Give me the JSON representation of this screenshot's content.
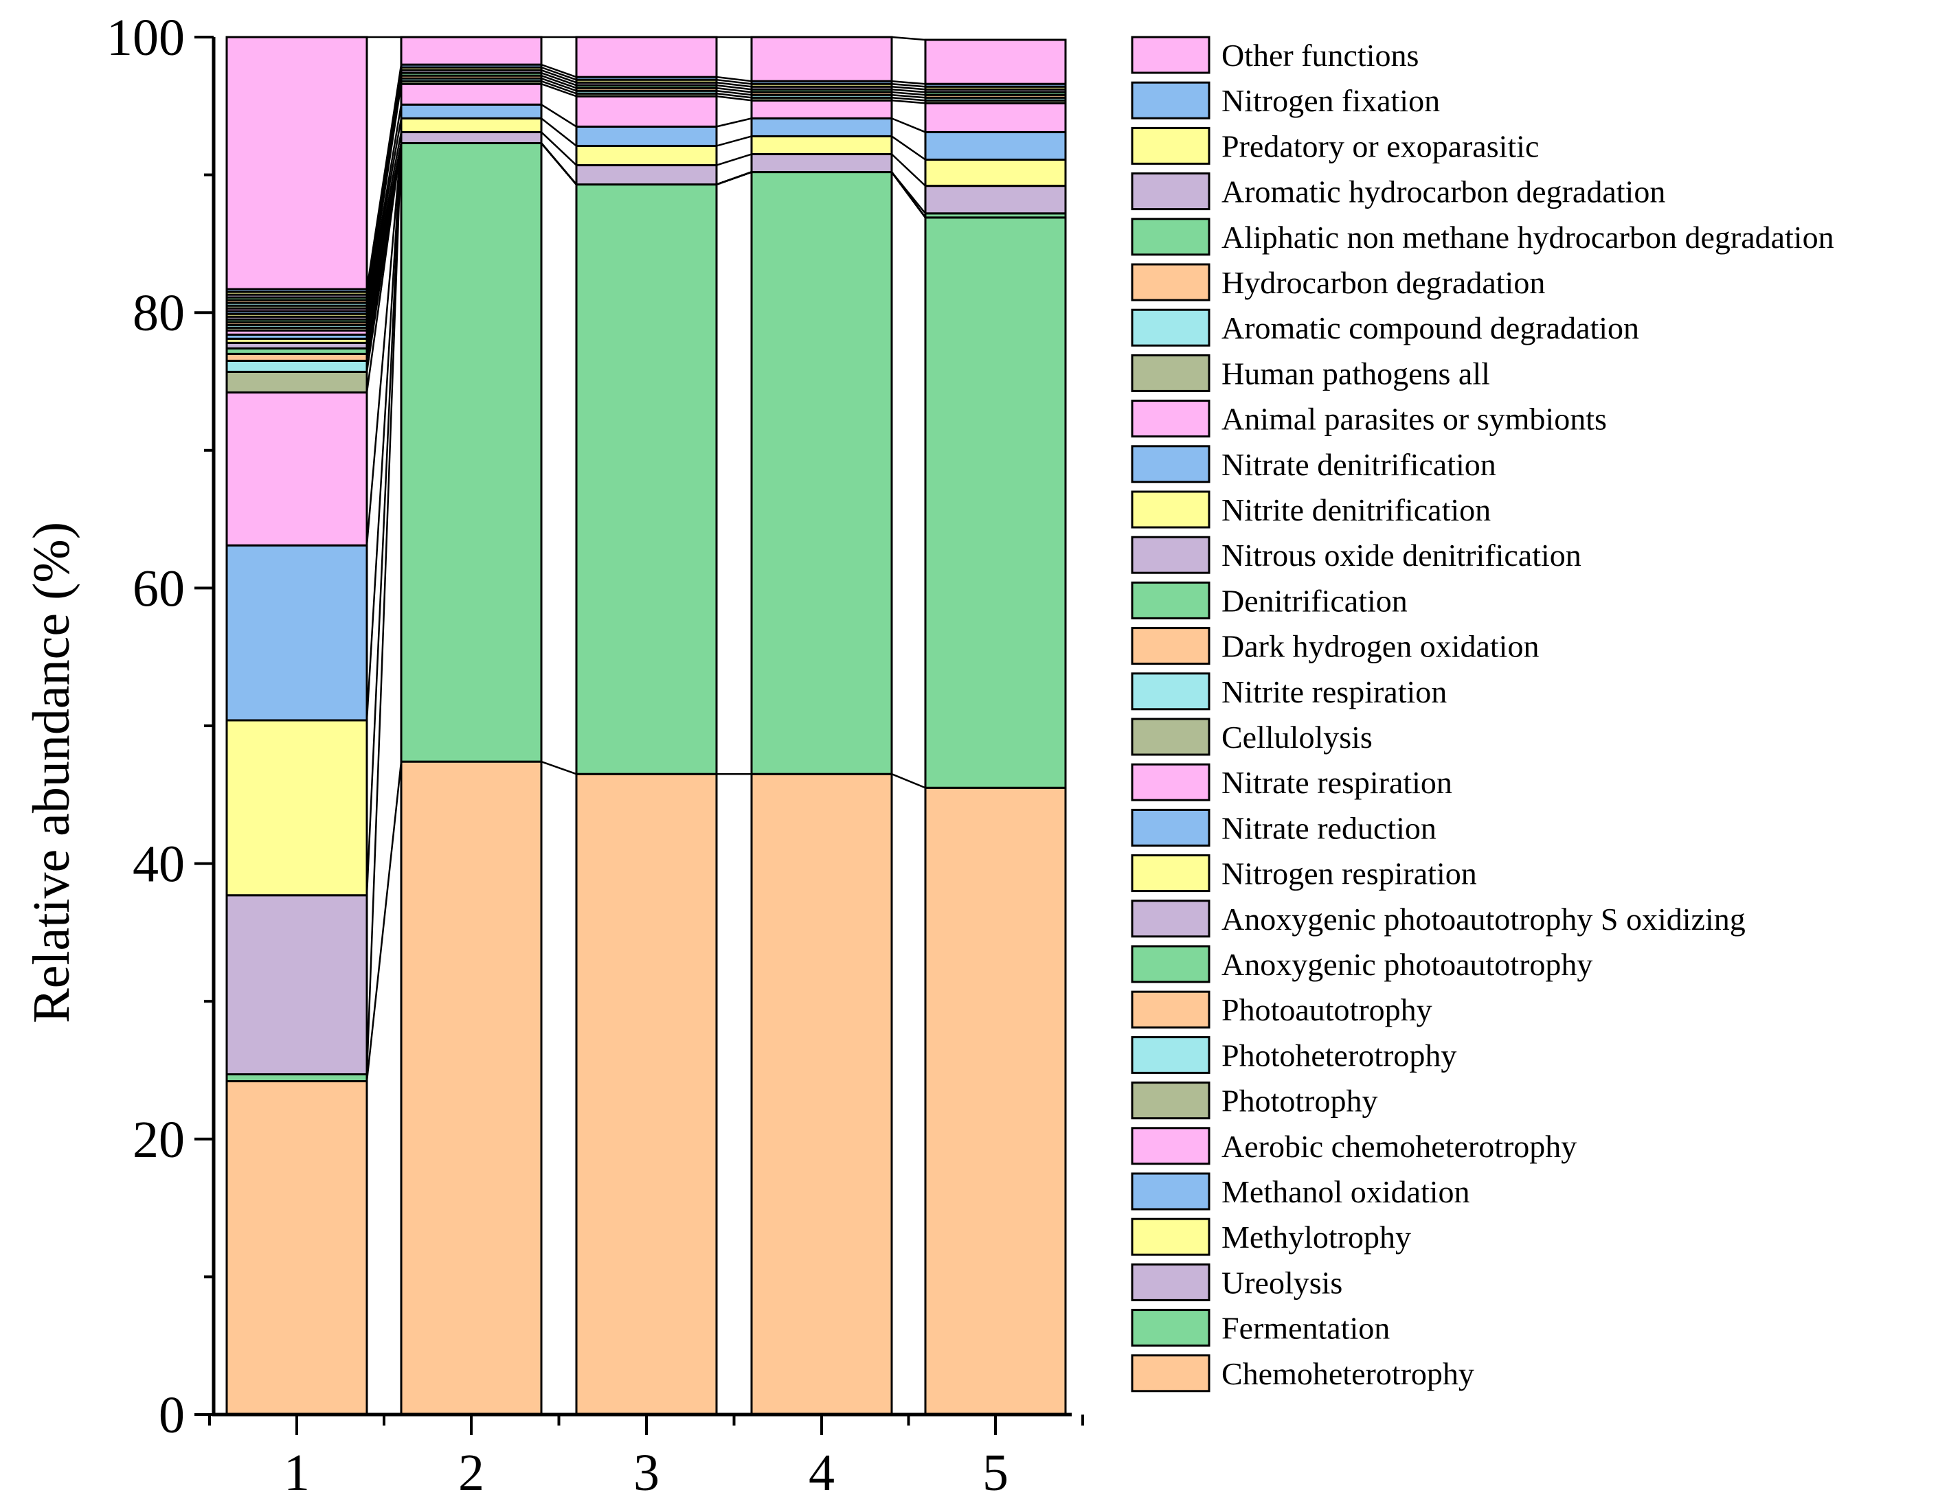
{
  "chart_data": {
    "type": "bar",
    "stacked": true,
    "connector_lines": true,
    "categories": [
      "1",
      "2",
      "3",
      "4",
      "5"
    ],
    "ylabel": "Relative abundance (%)",
    "xlabel": "",
    "ylim": [
      0,
      100
    ],
    "yticks": [
      "0",
      "20",
      "40",
      "60",
      "80",
      "100"
    ],
    "legend_position": "right",
    "series": [
      {
        "name": "Chemoheterotrophy",
        "color": "#FFC896",
        "values": [
          24.2,
          47.4,
          46.5,
          46.5,
          45.5
        ]
      },
      {
        "name": "Fermentation",
        "color": "#7FD89A",
        "values": [
          0.5,
          44.9,
          42.8,
          43.7,
          41.4
        ]
      },
      {
        "name": "Ureolysis",
        "color": "#C8B4D8",
        "values": [
          13.0,
          0.0,
          0.0,
          0.0,
          0.0
        ]
      },
      {
        "name": "Methylotrophy",
        "color": "#FFFF96",
        "values": [
          12.7,
          0.0,
          0.0,
          0.0,
          0.0
        ]
      },
      {
        "name": "Methanol oxidation",
        "color": "#8ABCF0",
        "values": [
          12.7,
          0.0,
          0.0,
          0.0,
          0.0
        ]
      },
      {
        "name": "Aerobic chemoheterotrophy",
        "color": "#FFB4F4",
        "values": [
          11.1,
          0.0,
          0.0,
          0.0,
          0.0
        ]
      },
      {
        "name": "Phototrophy",
        "color": "#B0BC94",
        "values": [
          1.5,
          0.0,
          0.0,
          0.0,
          0.0
        ]
      },
      {
        "name": "Photoheterotrophy",
        "color": "#A0E8EC",
        "values": [
          0.8,
          0.0,
          0.0,
          0.0,
          0.0
        ]
      },
      {
        "name": "Photoautotrophy",
        "color": "#FFC896",
        "values": [
          0.5,
          0.0,
          0.0,
          0.0,
          0.0
        ]
      },
      {
        "name": "Anoxygenic photoautotrophy",
        "color": "#7FD89A",
        "values": [
          0.4,
          0.0,
          0.0,
          0.0,
          0.0
        ]
      },
      {
        "name": "Anoxygenic photoautotrophy S oxidizing",
        "color": "#C8B4D8",
        "values": [
          0.4,
          0.0,
          0.0,
          0.0,
          0.0
        ]
      },
      {
        "name": "Nitrogen respiration",
        "color": "#FFFF96",
        "values": [
          0.3,
          0.0,
          0.0,
          0.0,
          0.0
        ]
      },
      {
        "name": "Nitrate reduction",
        "color": "#8ABCF0",
        "values": [
          0.3,
          0.0,
          0.0,
          0.0,
          0.0
        ]
      },
      {
        "name": "Nitrate respiration",
        "color": "#FFB4F4",
        "values": [
          0.3,
          0.0,
          0.0,
          0.0,
          0.0
        ]
      },
      {
        "name": "Cellulolysis",
        "color": "#B0BC94",
        "values": [
          0.2,
          0.0,
          0.0,
          0.0,
          0.0
        ]
      },
      {
        "name": "Nitrite respiration",
        "color": "#A0E8EC",
        "values": [
          0.2,
          0.0,
          0.0,
          0.0,
          0.0
        ]
      },
      {
        "name": "Dark hydrogen oxidation",
        "color": "#FFC896",
        "values": [
          0.2,
          0.0,
          0.0,
          0.0,
          0.0
        ]
      },
      {
        "name": "Denitrification",
        "color": "#7FD89A",
        "values": [
          0.2,
          0.0,
          0.0,
          0.0,
          0.3
        ]
      },
      {
        "name": "Nitrous oxide denitrification",
        "color": "#C8B4D8",
        "values": [
          0.2,
          0.8,
          1.4,
          1.3,
          2.0
        ]
      },
      {
        "name": "Nitrite denitrification",
        "color": "#FFFF96",
        "values": [
          0.2,
          1.0,
          1.4,
          1.3,
          1.9
        ]
      },
      {
        "name": "Nitrate denitrification",
        "color": "#8ABCF0",
        "values": [
          0.2,
          1.0,
          1.4,
          1.3,
          2.0
        ]
      },
      {
        "name": "Animal parasites or symbionts",
        "color": "#FFB4F4",
        "values": [
          0.2,
          1.5,
          2.2,
          1.3,
          2.1
        ]
      },
      {
        "name": "Human pathogens all",
        "color": "#B0BC94",
        "values": [
          0.2,
          0.2,
          0.2,
          0.2,
          0.2
        ]
      },
      {
        "name": "Aromatic compound degradation",
        "color": "#A0E8EC",
        "values": [
          0.2,
          0.2,
          0.2,
          0.2,
          0.2
        ]
      },
      {
        "name": "Hydrocarbon degradation",
        "color": "#FFC896",
        "values": [
          0.2,
          0.2,
          0.2,
          0.2,
          0.2
        ]
      },
      {
        "name": "Aliphatic non methane hydrocarbon degradation",
        "color": "#7FD89A",
        "values": [
          0.2,
          0.2,
          0.2,
          0.2,
          0.2
        ]
      },
      {
        "name": "Aromatic hydrocarbon degradation",
        "color": "#C8B4D8",
        "values": [
          0.2,
          0.2,
          0.2,
          0.2,
          0.2
        ]
      },
      {
        "name": "Predatory or exoparasitic",
        "color": "#FFFF96",
        "values": [
          0.2,
          0.2,
          0.2,
          0.2,
          0.2
        ]
      },
      {
        "name": "Nitrogen fixation",
        "color": "#8ABCF0",
        "values": [
          0.2,
          0.2,
          0.2,
          0.2,
          0.2
        ]
      },
      {
        "name": "Other functions",
        "color": "#FFB4F4",
        "values": [
          19.5,
          3.0,
          3.1,
          3.8,
          3.2
        ]
      }
    ]
  }
}
